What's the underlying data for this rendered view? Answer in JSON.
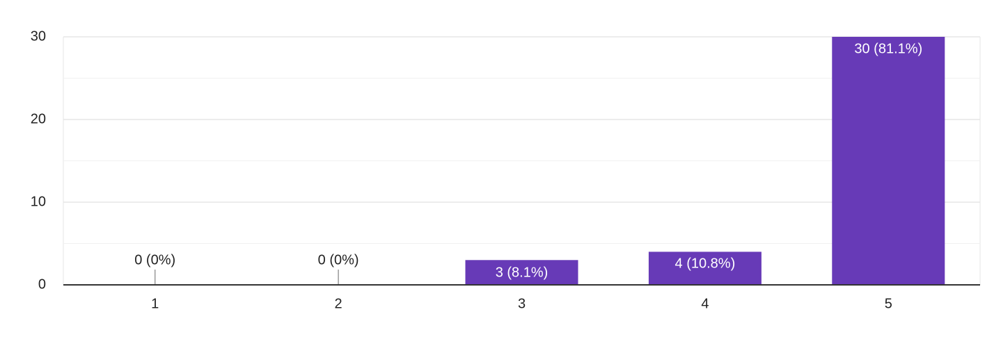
{
  "chart_data": {
    "type": "bar",
    "categories": [
      "1",
      "2",
      "3",
      "4",
      "5"
    ],
    "values": [
      0,
      0,
      3,
      4,
      30
    ],
    "value_labels": [
      "0 (0%)",
      "0 (0%)",
      "3 (8.1%)",
      "4 (10.8%)",
      "30 (81.1%)"
    ],
    "color": "#673ab7",
    "ylim": [
      0,
      30
    ],
    "yticks": [
      0,
      10,
      20,
      30
    ],
    "minor_yticks": [
      5,
      15,
      25
    ],
    "grid": true
  }
}
